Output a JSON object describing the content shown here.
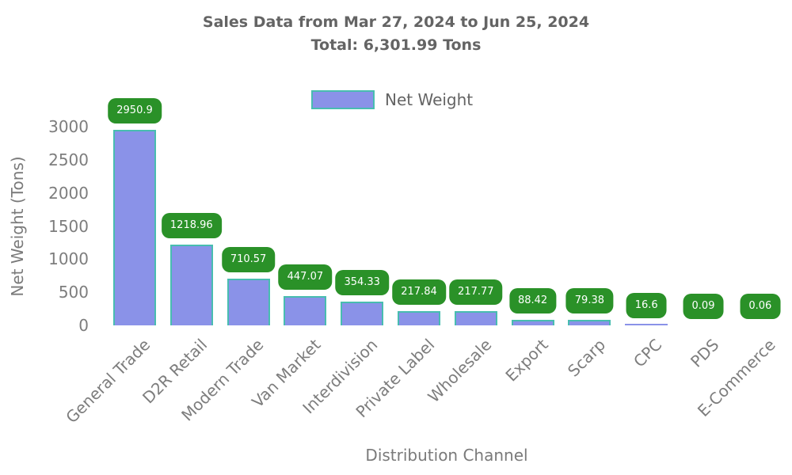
{
  "chart_data": {
    "type": "bar",
    "title": "Sales Data from Mar 27, 2024 to Jun 25, 2024",
    "subtitle": "Total: 6,301.99 Tons",
    "total_label": "6,301.99",
    "units": "Tons",
    "xlabel": "Distribution Channel",
    "ylabel": "Net Weight (Tons)",
    "legend_label": "Net Weight",
    "legend_position": "top-center",
    "grid": false,
    "categories": [
      "General Trade",
      "D2R Retail",
      "Modern Trade",
      "Van Market",
      "Interdivision",
      "Private Label",
      "Wholesale",
      "Export",
      "Scarp",
      "CPC",
      "PDS",
      "E-Commerce"
    ],
    "values": [
      2950.9,
      1218.96,
      710.57,
      447.07,
      354.33,
      217.84,
      217.77,
      88.42,
      79.38,
      16.6,
      0.09,
      0.06
    ],
    "value_labels": [
      "2950.9",
      "1218.96",
      "710.57",
      "447.07",
      "354.33",
      "217.84",
      "217.77",
      "88.42",
      "79.38",
      "16.6",
      "0.09",
      "0.06"
    ],
    "yticks": [
      0,
      500,
      1000,
      1500,
      2000,
      2500,
      3000
    ],
    "ylim": [
      0,
      3000
    ],
    "colors": {
      "bar_fill": "#8a92e8",
      "bar_border": "#48bdb0",
      "value_label_bg": "#2a9128",
      "value_label_text": "#ffffff",
      "title_text": "#646464",
      "tick_text": "#7d7d7d",
      "axis_label_text": "#7a7a7a",
      "background": "#ffffff"
    }
  }
}
